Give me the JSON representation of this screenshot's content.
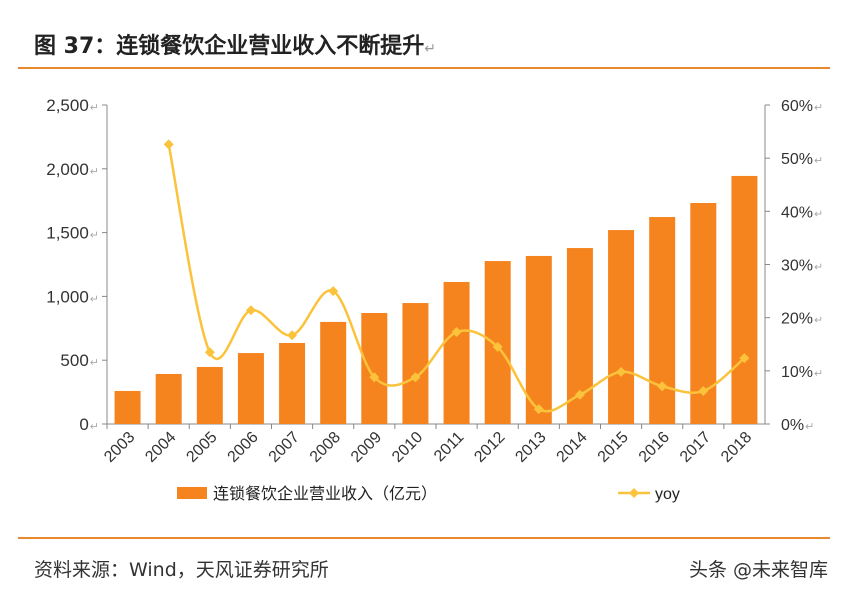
{
  "header": {
    "title": "图 37：连锁餐饮企业营业收入不断提升"
  },
  "footer": {
    "source": "资料来源：Wind，天风证券研究所",
    "watermark": "头条 @未来智库"
  },
  "colors": {
    "bar": "#f5841f",
    "line": "#fbc33b",
    "rule": "#e8892f"
  },
  "chart_data": {
    "type": "bar+line",
    "categories": [
      "2003",
      "2004",
      "2005",
      "2006",
      "2007",
      "2008",
      "2009",
      "2010",
      "2011",
      "2012",
      "2013",
      "2014",
      "2015",
      "2016",
      "2017",
      "2018"
    ],
    "series": [
      {
        "name": "连锁餐饮企业营业收入（亿元）",
        "type": "bar",
        "axis": "left",
        "values": [
          259,
          392,
          447,
          556,
          635,
          800,
          870,
          948,
          1113,
          1277,
          1317,
          1379,
          1520,
          1622,
          1732,
          1944
        ]
      },
      {
        "name": "yoy",
        "type": "line",
        "axis": "right",
        "values": [
          null,
          52.6,
          13.5,
          21.4,
          16.7,
          25.0,
          8.8,
          8.8,
          17.3,
          14.5,
          2.8,
          5.5,
          9.8,
          7.1,
          6.2,
          12.4
        ]
      }
    ],
    "y_left": {
      "min": 0,
      "max": 2500,
      "ticks": [
        "0",
        "500",
        "1,000",
        "1,500",
        "2,000",
        "2,500"
      ]
    },
    "y_right": {
      "min": 0,
      "max": 60,
      "ticks": [
        "0%",
        "10%",
        "20%",
        "30%",
        "40%",
        "50%",
        "60%"
      ]
    },
    "grid": false,
    "legend": "bottom"
  }
}
